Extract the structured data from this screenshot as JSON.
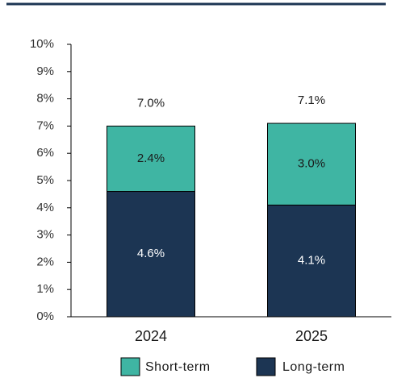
{
  "chart_data": {
    "type": "stacked_bar",
    "categories": [
      "2024",
      "2025"
    ],
    "series": [
      {
        "name": "Long-term",
        "color": "#1c3553",
        "values": [
          4.6,
          4.1
        ],
        "value_labels": [
          "4.6%",
          "4.1%"
        ]
      },
      {
        "name": "Short-term",
        "color": "#3fb5a3",
        "values": [
          2.4,
          3.0
        ],
        "value_labels": [
          "2.4%",
          "3.0%"
        ]
      }
    ],
    "totals": [
      7.0,
      7.1
    ],
    "totals_labels": [
      "7.0%",
      "7.1%"
    ],
    "ylim": [
      0,
      10
    ],
    "yticks": [
      {
        "value": 0,
        "label": "0%"
      },
      {
        "value": 1,
        "label": "1%"
      },
      {
        "value": 2,
        "label": "2%"
      },
      {
        "value": 3,
        "label": "3%"
      },
      {
        "value": 4,
        "label": "4%"
      },
      {
        "value": 5,
        "label": "5%"
      },
      {
        "value": 6,
        "label": "6%"
      },
      {
        "value": 7,
        "label": "7%"
      },
      {
        "value": 8,
        "label": "8%"
      },
      {
        "value": 9,
        "label": "9%"
      },
      {
        "value": 10,
        "label": "10%"
      }
    ],
    "legend": "bottom"
  }
}
